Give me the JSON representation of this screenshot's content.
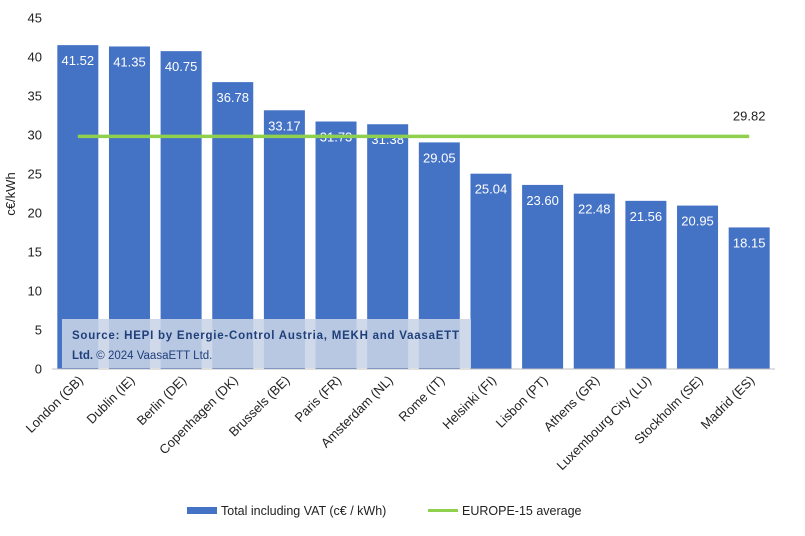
{
  "chart_data": {
    "type": "bar",
    "categories": [
      "London (GB)",
      "Dublin (IE)",
      "Berlin (DE)",
      "Copenhagen (DK)",
      "Brussels (BE)",
      "Paris (FR)",
      "Amsterdam (NL)",
      "Rome (IT)",
      "Helsinki (FI)",
      "Lisbon (PT)",
      "Athens (GR)",
      "Luxembourg City (LU)",
      "Stockholm (SE)",
      "Madrid (ES)"
    ],
    "series": [
      {
        "name": "Total including VAT (c€ / kWh)",
        "values": [
          41.52,
          41.35,
          40.75,
          36.78,
          33.17,
          31.73,
          31.38,
          29.05,
          25.04,
          23.6,
          22.48,
          21.56,
          20.95,
          18.15
        ],
        "labels": [
          "41.52",
          "41.35",
          "40.75",
          "36.78",
          "33.17",
          "31.73",
          "31.38",
          "29.05",
          "25.04",
          "23.60",
          "22.48",
          "21.56",
          "20.95",
          "18.15"
        ],
        "color": "#4472c4"
      }
    ],
    "average": {
      "name": "EUROPE-15 average",
      "value": 29.82,
      "label": "29.82",
      "color": "#8fd14f"
    },
    "ylabel": "c€/kWh",
    "ylim": [
      0,
      45
    ],
    "yticks": [
      0,
      5,
      10,
      15,
      20,
      25,
      30,
      35,
      40,
      45
    ],
    "grid": false,
    "legend_position": "bottom",
    "source": {
      "line1": "Source: HEPI by Energie-Control Austria, MEKH and VaasaETT",
      "line2_bold": "Ltd.",
      "line2_rest": " © 2024 VaasaETT Ltd."
    }
  }
}
